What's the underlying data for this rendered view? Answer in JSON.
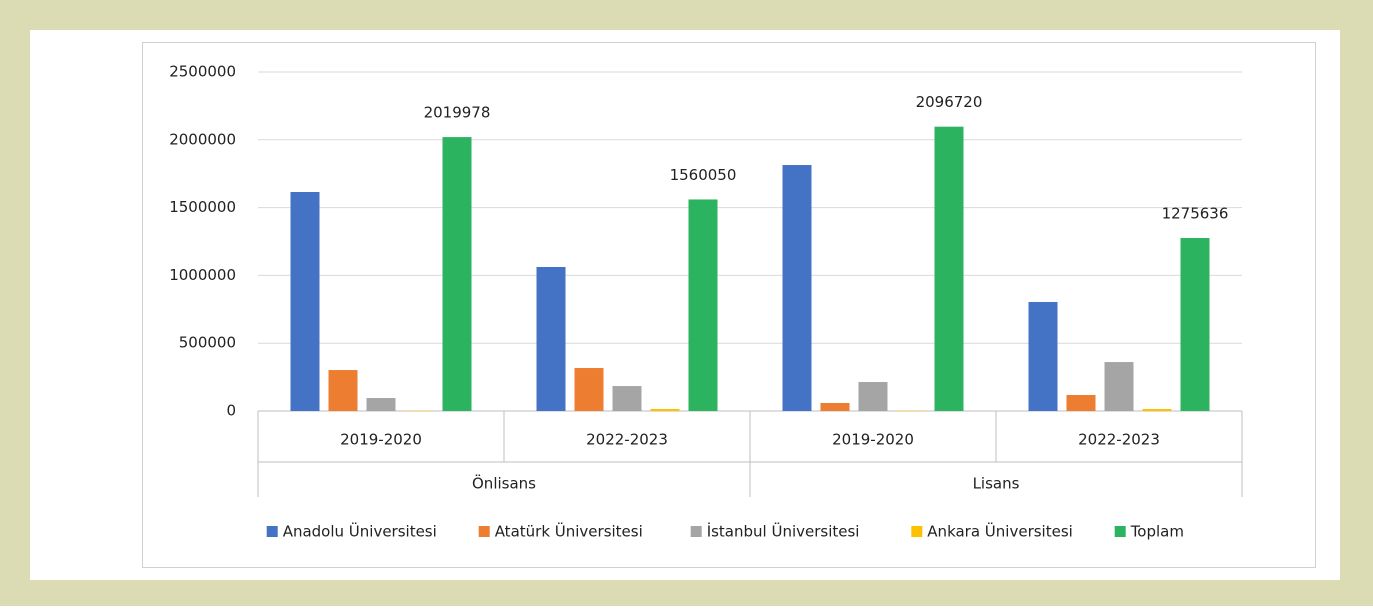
{
  "chart_data": {
    "type": "bar",
    "categories": [
      "2019-2020",
      "2022-2023",
      "2019-2020",
      "2022-2023"
    ],
    "category_groups": [
      "Önlisans",
      "Lisans"
    ],
    "series": [
      {
        "name": "Anadolu Üniversitesi",
        "color": "#4472c4",
        "values": [
          1615000,
          1062000,
          1814000,
          804000
        ]
      },
      {
        "name": "Atatürk Üniversitesi",
        "color": "#ed7d31",
        "values": [
          302000,
          317000,
          59000,
          118000
        ]
      },
      {
        "name": "İstanbul Üniversitesi",
        "color": "#a5a5a5",
        "values": [
          96000,
          184000,
          214000,
          361000
        ]
      },
      {
        "name": "Ankara Üniversitesi",
        "color": "#ffc000",
        "values": [
          3000,
          15000,
          3000,
          15000
        ]
      },
      {
        "name": "Toplam",
        "color": "#2bb35f",
        "values": [
          2019978,
          1560050,
          2096720,
          1275636
        ],
        "data_labels": true
      }
    ],
    "ylim": [
      0,
      2500000
    ],
    "yticks": [
      0,
      500000,
      1000000,
      1500000,
      2000000,
      2500000
    ],
    "grid": true,
    "legend": "bottom"
  }
}
